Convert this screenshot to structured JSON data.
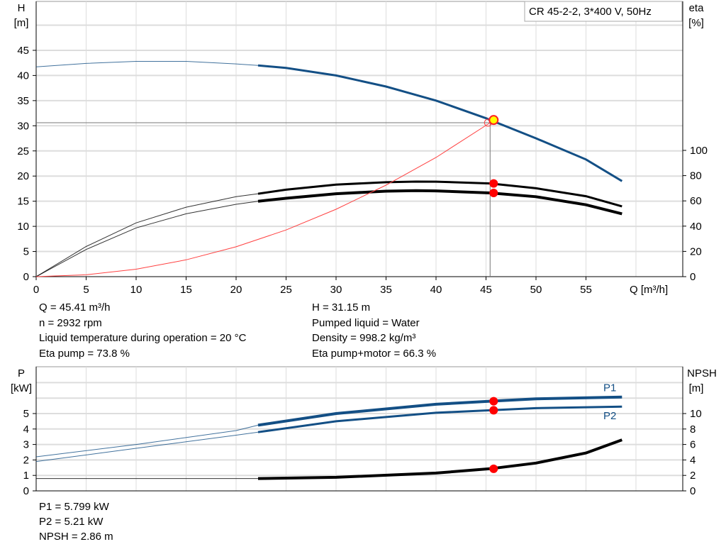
{
  "chart_data": [
    {
      "type": "line",
      "title": "CR 45-2-2, 3*400 V, 50Hz",
      "xlabel": "Q [m³/h]",
      "xlim": [
        0,
        65
      ],
      "xticks": [
        0,
        5,
        10,
        15,
        20,
        25,
        30,
        35,
        40,
        45,
        50,
        55
      ],
      "ylabel_left": [
        "H",
        "[m]"
      ],
      "ylim_left": [
        0,
        50
      ],
      "yticks_left": [
        0,
        5,
        10,
        15,
        20,
        25,
        30,
        35,
        40,
        45
      ],
      "ylabel_right": [
        "eta",
        "[%]"
      ],
      "ylim_right": [
        0,
        220
      ],
      "yticks_right": [
        0,
        20,
        40,
        60,
        80,
        100
      ],
      "grid": true,
      "series": [
        {
          "axis": "left",
          "color": "#134f85",
          "thin_until": 22.2,
          "x": [
            0,
            5,
            10,
            15,
            20,
            22.2,
            25,
            30,
            35,
            40,
            45,
            45.41,
            50,
            55,
            58.6
          ],
          "y": [
            41.7,
            42.4,
            42.8,
            42.8,
            42.3,
            42.0,
            41.5,
            40.0,
            37.8,
            35.0,
            31.5,
            31.15,
            27.5,
            23.3,
            19.0
          ]
        },
        {
          "axis": "right",
          "color": "#000000",
          "thin_until": 22.2,
          "x": [
            0,
            5,
            10,
            15,
            20,
            22.2,
            25,
            30,
            35,
            38,
            40,
            45.41,
            50,
            55,
            58.6
          ],
          "y": [
            0,
            23.9,
            42.6,
            55,
            63.3,
            65.7,
            68.9,
            72.9,
            74.8,
            75.3,
            75.2,
            73.8,
            70,
            63.7,
            55.7
          ]
        },
        {
          "axis": "right",
          "color": "#000000",
          "thin_until": 22.2,
          "x": [
            0,
            5,
            10,
            15,
            20,
            22.2,
            25,
            30,
            35,
            38,
            40,
            45.41,
            50,
            55,
            58.6
          ],
          "y": [
            0,
            21.5,
            38.6,
            49.8,
            57.3,
            59.7,
            62.1,
            65.7,
            67.7,
            68.1,
            67.9,
            66.3,
            63.3,
            56.9,
            49.8
          ]
        },
        {
          "axis": "left",
          "color": "#ff4040",
          "x": [
            0,
            5,
            10,
            15,
            20,
            25,
            30,
            35,
            40,
            45.41
          ],
          "y": [
            0,
            0.37,
            1.48,
            3.34,
            5.94,
            9.28,
            13.4,
            18.2,
            23.7,
            30.6
          ]
        }
      ],
      "operating_point": {
        "Q": 45.41,
        "H": 31.15,
        "eta_pump": 73.8,
        "eta_pump_motor": 66.3,
        "system_H": 30.6
      }
    },
    {
      "type": "line",
      "xlim": [
        0,
        65
      ],
      "ylabel_left": [
        "P",
        "[kW]"
      ],
      "ylim_left": [
        0,
        8
      ],
      "yticks_left": [
        0,
        1,
        2,
        3,
        4,
        5
      ],
      "ylabel_right": [
        "NPSH",
        "[m]"
      ],
      "ylim_right": [
        0,
        16
      ],
      "yticks_right": [
        0,
        2,
        4,
        6,
        8,
        10
      ],
      "grid": true,
      "series": [
        {
          "name": "P1",
          "axis": "left",
          "color": "#134f85",
          "thin_until": 22.2,
          "x": [
            0,
            10,
            20,
            22.2,
            30,
            40,
            45.41,
            50,
            58.6
          ],
          "y": [
            2.2,
            3.0,
            3.9,
            4.25,
            5.0,
            5.6,
            5.8,
            5.95,
            6.07
          ]
        },
        {
          "name": "P2",
          "axis": "left",
          "color": "#134f85",
          "thin_until": 22.2,
          "x": [
            0,
            10,
            20,
            22.2,
            30,
            40,
            45.41,
            50,
            58.6
          ],
          "y": [
            1.9,
            2.75,
            3.6,
            3.8,
            4.5,
            5.05,
            5.21,
            5.35,
            5.45
          ]
        },
        {
          "axis": "right",
          "color": "#000000",
          "thin_until": 22.2,
          "x": [
            0,
            10,
            22.2,
            30,
            40,
            45.41,
            50,
            55,
            58.6
          ],
          "y": [
            1.6,
            1.6,
            1.6,
            1.75,
            2.3,
            2.86,
            3.6,
            4.9,
            6.6
          ]
        }
      ],
      "operating_point": {
        "Q": 45.41,
        "P1": 5.799,
        "P2": 5.21,
        "NPSH": 2.86
      }
    }
  ],
  "info_top_left": [
    "Q = 45.41 m³/h",
    "n = 2932 rpm",
    "Liquid temperature during operation = 20 °C",
    "Eta pump = 73.8 %"
  ],
  "info_top_right": [
    "H = 31.15 m",
    "Pumped liquid = Water",
    "Density = 998.2 kg/m³",
    "Eta pump+motor = 66.3 %"
  ],
  "info_bottom": [
    "P1 = 5.799 kW",
    "P2 = 5.21 kW",
    "NPSH = 2.86 m"
  ]
}
